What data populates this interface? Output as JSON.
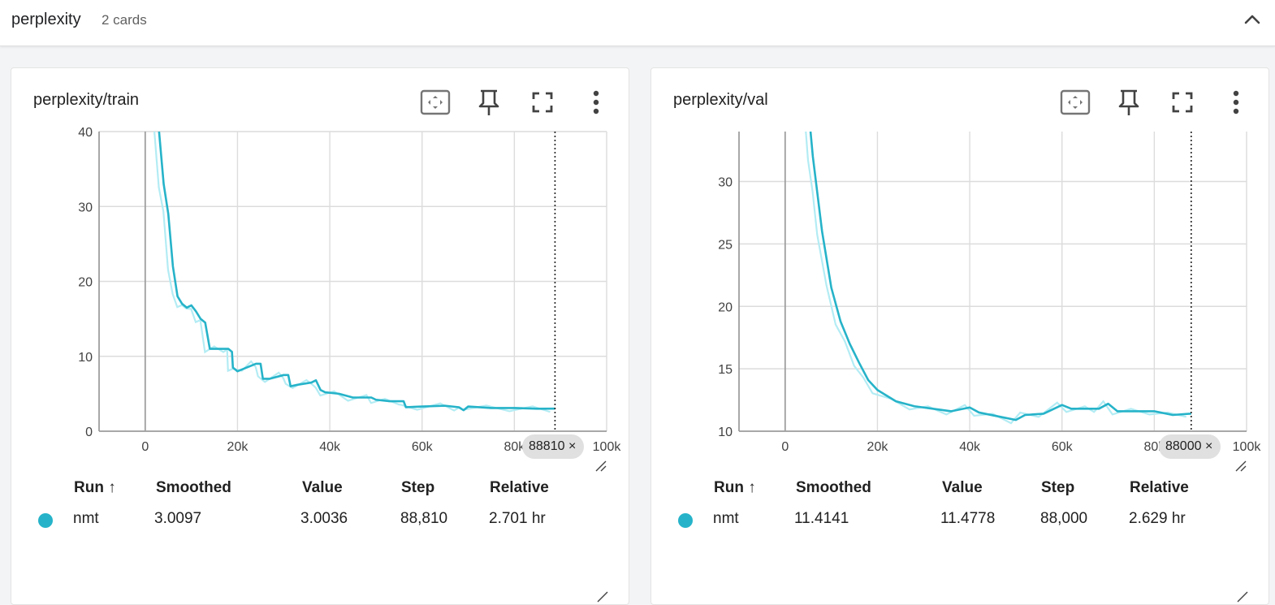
{
  "group": {
    "title": "perplexity",
    "count": "2 cards",
    "collapse_icon": "chevron-up-icon"
  },
  "colors": {
    "smoothed": "#26b3c9",
    "raw": "#b3ecf4",
    "grid": "#dcdcdc",
    "axis": "#9e9e9e",
    "accent": "#26b3c9"
  },
  "table_headers": {
    "run": "Run ↑",
    "smoothed": "Smoothed",
    "value": "Value",
    "step": "Step",
    "relative": "Relative"
  },
  "cards": [
    {
      "title": "perplexity/train",
      "row": {
        "run": "nmt",
        "smoothed": "3.0097",
        "value": "3.0036",
        "step": "88,810",
        "relative": "2.701 hr"
      },
      "chip": {
        "label": "88810",
        "close": "×"
      },
      "toolbar_icons": [
        "fit-domain-icon",
        "pin-icon",
        "fullscreen-icon",
        "more-vert-icon"
      ]
    },
    {
      "title": "perplexity/val",
      "row": {
        "run": "nmt",
        "smoothed": "11.4141",
        "value": "11.4778",
        "step": "88,000",
        "relative": "2.629 hr"
      },
      "chip": {
        "label": "88000",
        "close": "×"
      },
      "toolbar_icons": [
        "fit-domain-icon",
        "pin-icon",
        "fullscreen-icon",
        "more-vert-icon"
      ]
    }
  ],
  "chart_data": [
    {
      "type": "line",
      "title": "perplexity/train",
      "xlim": [
        -10000,
        100000
      ],
      "ylim": [
        0,
        40
      ],
      "x_ticks": [
        "0",
        "20k",
        "40k",
        "60k",
        "80k",
        "100k"
      ],
      "y_ticks": [
        "0",
        "10",
        "20",
        "30",
        "40"
      ],
      "grid": true,
      "step_marker": 88810,
      "series": [
        {
          "name": "nmt",
          "x": [
            3000,
            4000,
            5000,
            6000,
            7000,
            8000,
            9000,
            10000,
            11000,
            12000,
            13000,
            14000,
            16000,
            18000,
            18800,
            19000,
            20000,
            22000,
            24000,
            25000,
            25500,
            27000,
            30000,
            31000,
            31500,
            33000,
            36000,
            37000,
            38000,
            39000,
            42000,
            45000,
            49000,
            50000,
            53000,
            56000,
            56500,
            60000,
            65000,
            68000,
            69000,
            70000,
            75000,
            80000,
            85000,
            88810
          ],
          "y": [
            40,
            33,
            29,
            22,
            18,
            17,
            16.5,
            16.8,
            16,
            15,
            14.5,
            11,
            11,
            11,
            10.6,
            8.5,
            8,
            8.5,
            9,
            9,
            7,
            7,
            7.5,
            7.5,
            6,
            6.2,
            6.5,
            6.8,
            5.5,
            5.2,
            5,
            4.5,
            4.5,
            4.2,
            4,
            4,
            3.2,
            3.3,
            3.4,
            3.2,
            2.8,
            3.3,
            3.1,
            3.1,
            3.0,
            3.0097
          ]
        }
      ]
    },
    {
      "type": "line",
      "title": "perplexity/val",
      "xlim": [
        -10000,
        100000
      ],
      "ylim": [
        10,
        34
      ],
      "x_ticks": [
        "0",
        "20k",
        "40k",
        "60k",
        "80k",
        "100k"
      ],
      "y_ticks": [
        "10",
        "15",
        "20",
        "25",
        "30"
      ],
      "grid": true,
      "step_marker": 88000,
      "series": [
        {
          "name": "nmt",
          "x": [
            5500,
            6000,
            7000,
            8000,
            10000,
            12000,
            14000,
            16000,
            18000,
            20000,
            24000,
            28000,
            32000,
            36000,
            40000,
            42000,
            46000,
            50000,
            52000,
            56000,
            60000,
            62000,
            66000,
            68000,
            70000,
            72000,
            76000,
            80000,
            84000,
            88000
          ],
          "y": [
            34,
            32,
            29,
            26,
            21.5,
            18.8,
            17,
            15.5,
            14.1,
            13.3,
            12.4,
            12,
            11.8,
            11.6,
            11.9,
            11.5,
            11.2,
            10.9,
            11.3,
            11.4,
            12.1,
            11.8,
            11.8,
            11.8,
            12.2,
            11.6,
            11.6,
            11.6,
            11.3,
            11.41
          ]
        }
      ]
    }
  ]
}
